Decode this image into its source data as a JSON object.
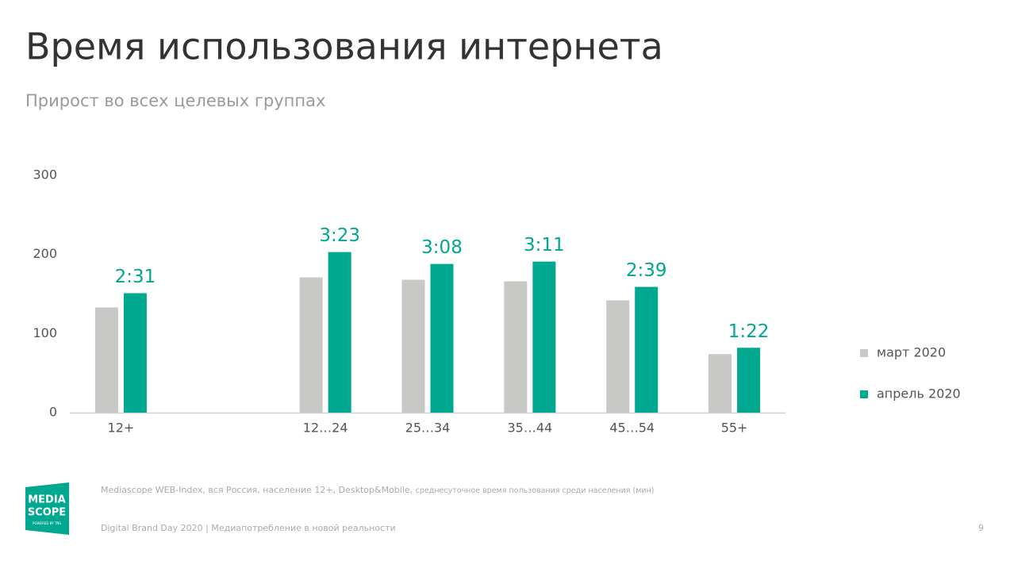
{
  "chart_data": {
    "type": "bar",
    "title": "Время использования интернета",
    "subtitle": "Прирост во всех целевых группах",
    "categories": [
      "12+",
      null,
      "12…24",
      "25…34",
      "35…44",
      "45…54",
      "55+"
    ],
    "series": [
      {
        "name": "март 2020",
        "color": "#c8c8c6",
        "values": [
          133,
          null,
          171,
          168,
          166,
          142,
          74
        ]
      },
      {
        "name": "апрель 2020",
        "color": "#00a890",
        "values": [
          151,
          null,
          203,
          188,
          191,
          159,
          82
        ],
        "value_labels": [
          "2:31",
          null,
          "3:23",
          "3:08",
          "3:11",
          "2:39",
          "1:22"
        ]
      }
    ],
    "ylim": [
      0,
      300
    ],
    "yticks": [
      0,
      100,
      200,
      300
    ],
    "grid": false,
    "legend": "right"
  },
  "slide": {
    "source_main": "Mediascope WEB-Index, вся Россия, население 12+, Desktop&Mobile,",
    "source_note": "среднесуточное время пользования среди населения (мин)",
    "footer": "Digital Brand Day 2020 | Медиапотребление в новой реальности",
    "page_number": "9",
    "logo": [
      "MEDIA",
      "SCOPE",
      "POWERED BY TNS"
    ]
  }
}
